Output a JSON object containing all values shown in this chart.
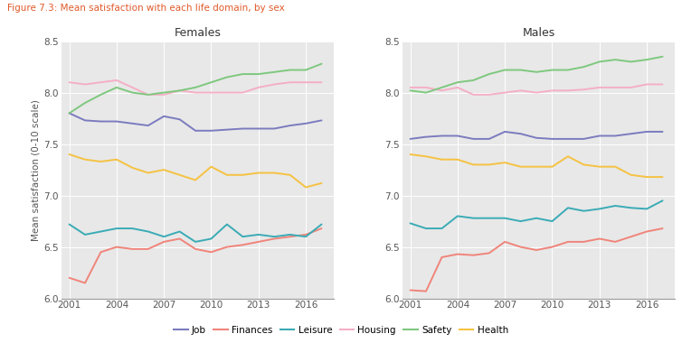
{
  "title": "Figure 7.3: Mean satisfaction with each life domain, by sex",
  "title_color": "#e05a2b",
  "panel_titles": [
    "Females",
    "Males"
  ],
  "ylabel": "Mean satisfaction (0-10 scale)",
  "xlabel_ticks": [
    2001,
    2004,
    2007,
    2010,
    2013,
    2016
  ],
  "years": [
    2001,
    2002,
    2003,
    2004,
    2005,
    2006,
    2007,
    2008,
    2009,
    2010,
    2011,
    2012,
    2013,
    2014,
    2015,
    2016,
    2017
  ],
  "ylim": [
    6.0,
    8.5
  ],
  "yticks": [
    6.0,
    6.5,
    7.0,
    7.5,
    8.0,
    8.5
  ],
  "background_color": "#e8e8e8",
  "series": {
    "Job": {
      "color": "#7b7bbf",
      "lw": 1.4
    },
    "Finances": {
      "color": "#f0847a",
      "lw": 1.4
    },
    "Leisure": {
      "color": "#3aabb5",
      "lw": 1.4
    },
    "Housing": {
      "color": "#f4afc5",
      "lw": 1.4
    },
    "Safety": {
      "color": "#7ec87e",
      "lw": 1.4
    },
    "Health": {
      "color": "#f5c242",
      "lw": 1.4
    }
  },
  "females": {
    "Job": [
      7.8,
      7.73,
      7.72,
      7.72,
      7.7,
      7.68,
      7.77,
      7.74,
      7.63,
      7.63,
      7.64,
      7.65,
      7.65,
      7.65,
      7.68,
      7.7,
      7.73
    ],
    "Finances": [
      6.2,
      6.15,
      6.45,
      6.5,
      6.48,
      6.48,
      6.55,
      6.58,
      6.48,
      6.45,
      6.5,
      6.52,
      6.55,
      6.58,
      6.6,
      6.62,
      6.68
    ],
    "Leisure": [
      6.72,
      6.62,
      6.65,
      6.68,
      6.68,
      6.65,
      6.6,
      6.65,
      6.55,
      6.58,
      6.72,
      6.6,
      6.62,
      6.6,
      6.62,
      6.6,
      6.72
    ],
    "Housing": [
      8.1,
      8.08,
      8.1,
      8.12,
      8.05,
      7.98,
      7.98,
      8.02,
      8.0,
      8.0,
      8.0,
      8.0,
      8.05,
      8.08,
      8.1,
      8.1,
      8.1
    ],
    "Safety": [
      7.8,
      7.9,
      7.98,
      8.05,
      8.0,
      7.98,
      8.0,
      8.02,
      8.05,
      8.1,
      8.15,
      8.18,
      8.18,
      8.2,
      8.22,
      8.22,
      8.28
    ],
    "Health": [
      7.4,
      7.35,
      7.33,
      7.35,
      7.27,
      7.22,
      7.25,
      7.2,
      7.15,
      7.28,
      7.2,
      7.2,
      7.22,
      7.22,
      7.2,
      7.08,
      7.12
    ]
  },
  "males": {
    "Job": [
      7.55,
      7.57,
      7.58,
      7.58,
      7.55,
      7.55,
      7.62,
      7.6,
      7.56,
      7.55,
      7.55,
      7.55,
      7.58,
      7.58,
      7.6,
      7.62,
      7.62
    ],
    "Finances": [
      6.08,
      6.07,
      6.4,
      6.43,
      6.42,
      6.44,
      6.55,
      6.5,
      6.47,
      6.5,
      6.55,
      6.55,
      6.58,
      6.55,
      6.6,
      6.65,
      6.68
    ],
    "Leisure": [
      6.73,
      6.68,
      6.68,
      6.8,
      6.78,
      6.78,
      6.78,
      6.75,
      6.78,
      6.75,
      6.88,
      6.85,
      6.87,
      6.9,
      6.88,
      6.87,
      6.95
    ],
    "Housing": [
      8.05,
      8.05,
      8.02,
      8.05,
      7.98,
      7.98,
      8.0,
      8.02,
      8.0,
      8.02,
      8.02,
      8.03,
      8.05,
      8.05,
      8.05,
      8.08,
      8.08
    ],
    "Safety": [
      8.02,
      8.0,
      8.05,
      8.1,
      8.12,
      8.18,
      8.22,
      8.22,
      8.2,
      8.22,
      8.22,
      8.25,
      8.3,
      8.32,
      8.3,
      8.32,
      8.35
    ],
    "Health": [
      7.4,
      7.38,
      7.35,
      7.35,
      7.3,
      7.3,
      7.32,
      7.28,
      7.28,
      7.28,
      7.38,
      7.3,
      7.28,
      7.28,
      7.2,
      7.18,
      7.18
    ]
  },
  "legend_order": [
    "Job",
    "Finances",
    "Leisure",
    "Housing",
    "Safety",
    "Health"
  ]
}
